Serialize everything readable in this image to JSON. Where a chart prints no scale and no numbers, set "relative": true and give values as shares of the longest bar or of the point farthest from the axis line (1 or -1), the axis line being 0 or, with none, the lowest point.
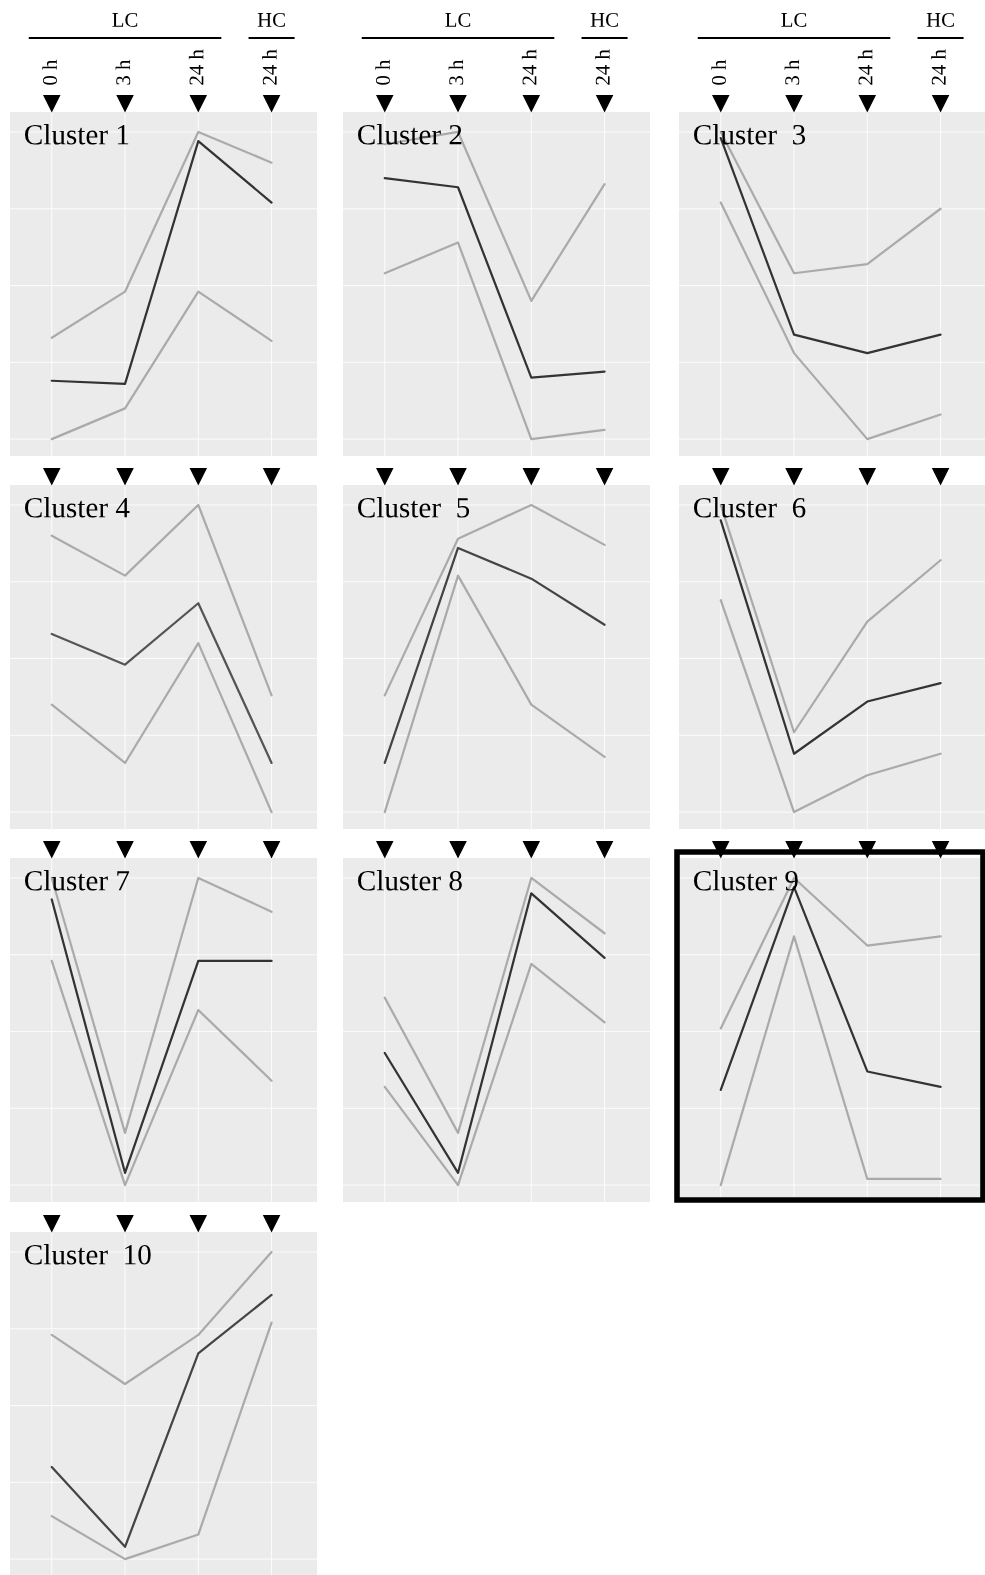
{
  "chart_data": [
    {
      "type": "line",
      "title": "Cluster 1",
      "relative": true,
      "grid": true,
      "categories": [
        "0 h",
        "3 h",
        "24 h",
        "24 h"
      ],
      "annotations": [
        "LC",
        "HC"
      ],
      "series": [
        {
          "color": "#aaaaaa",
          "values": [
            0.33,
            0.48,
            1,
            0.9
          ]
        },
        {
          "color": "#aaaaaa",
          "values": [
            0,
            0.1,
            0.48,
            0.32
          ]
        },
        {
          "color": "#333333",
          "values": [
            0.19,
            0.18,
            0.97,
            0.77
          ]
        }
      ]
    },
    {
      "type": "line",
      "title": "Cluster 2",
      "relative": true,
      "grid": true,
      "categories": [
        "0 h",
        "3 h",
        "24 h",
        "24 h"
      ],
      "annotations": [
        "LC",
        "HC"
      ],
      "series": [
        {
          "color": "#aaaaaa",
          "values": [
            0.96,
            1,
            0.45,
            0.83
          ]
        },
        {
          "color": "#aaaaaa",
          "values": [
            0.54,
            0.64,
            0,
            0.03
          ]
        },
        {
          "color": "#333333",
          "values": [
            0.85,
            0.82,
            0.2,
            0.22
          ]
        }
      ]
    },
    {
      "type": "line",
      "title": "Cluster  3",
      "relative": true,
      "grid": true,
      "categories": [
        "0 h",
        "3 h",
        "24 h",
        "24 h"
      ],
      "annotations": [
        "LC",
        "HC"
      ],
      "series": [
        {
          "color": "#aaaaaa",
          "values": [
            1,
            0.54,
            0.57,
            0.75
          ]
        },
        {
          "color": "#aaaaaa",
          "values": [
            0.77,
            0.28,
            0,
            0.08
          ]
        },
        {
          "color": "#333333",
          "values": [
            0.98,
            0.34,
            0.28,
            0.34
          ]
        }
      ]
    },
    {
      "type": "line",
      "title": "Cluster 4",
      "relative": true,
      "grid": true,
      "categories": [
        null,
        null,
        null,
        null
      ],
      "series": [
        {
          "color": "#aaaaaa",
          "values": [
            0.9,
            0.77,
            1,
            0.38
          ]
        },
        {
          "color": "#aaaaaa",
          "values": [
            0.35,
            0.16,
            0.55,
            0
          ]
        },
        {
          "color": "#555555",
          "values": [
            0.58,
            0.48,
            0.68,
            0.16
          ]
        }
      ]
    },
    {
      "type": "line",
      "title": "Cluster  5",
      "relative": true,
      "grid": true,
      "categories": [
        null,
        null,
        null,
        null
      ],
      "series": [
        {
          "color": "#aaaaaa",
          "values": [
            0.38,
            0.89,
            1,
            0.87
          ]
        },
        {
          "color": "#aaaaaa",
          "values": [
            0,
            0.77,
            0.35,
            0.18
          ]
        },
        {
          "color": "#444444",
          "values": [
            0.16,
            0.86,
            0.76,
            0.61
          ]
        }
      ]
    },
    {
      "type": "line",
      "title": "Cluster  6",
      "relative": true,
      "grid": true,
      "categories": [
        null,
        null,
        null,
        null
      ],
      "series": [
        {
          "color": "#aaaaaa",
          "values": [
            1,
            0.26,
            0.62,
            0.82
          ]
        },
        {
          "color": "#aaaaaa",
          "values": [
            0.69,
            0,
            0.12,
            0.19
          ]
        },
        {
          "color": "#333333",
          "values": [
            0.95,
            0.19,
            0.36,
            0.42
          ]
        }
      ]
    },
    {
      "type": "line",
      "title": "Cluster 7",
      "relative": true,
      "grid": true,
      "categories": [
        null,
        null,
        null,
        null
      ],
      "series": [
        {
          "color": "#aaaaaa",
          "values": [
            1,
            0.17,
            1,
            0.89
          ]
        },
        {
          "color": "#aaaaaa",
          "values": [
            0.73,
            0,
            0.57,
            0.34
          ]
        },
        {
          "color": "#333333",
          "values": [
            0.93,
            0.04,
            0.73,
            0.73
          ]
        }
      ]
    },
    {
      "type": "line",
      "title": "Cluster 8",
      "relative": true,
      "grid": true,
      "categories": [
        null,
        null,
        null,
        null
      ],
      "series": [
        {
          "color": "#aaaaaa",
          "values": [
            0.61,
            0.17,
            1,
            0.82
          ]
        },
        {
          "color": "#aaaaaa",
          "values": [
            0.32,
            0,
            0.72,
            0.53
          ]
        },
        {
          "color": "#333333",
          "values": [
            0.43,
            0.04,
            0.95,
            0.74
          ]
        }
      ]
    },
    {
      "type": "line",
      "title": "Cluster 9",
      "relative": true,
      "grid": true,
      "categories": [
        null,
        null,
        null,
        null
      ],
      "series": [
        {
          "color": "#aaaaaa",
          "values": [
            0.51,
            1,
            0.78,
            0.81
          ]
        },
        {
          "color": "#aaaaaa",
          "values": [
            0,
            0.81,
            0.02,
            0.02
          ]
        },
        {
          "color": "#333333",
          "values": [
            0.31,
            0.97,
            0.37,
            0.32
          ]
        }
      ]
    },
    {
      "type": "line",
      "title": "Cluster  10",
      "relative": true,
      "grid": true,
      "categories": [
        null,
        null,
        null,
        null
      ],
      "series": [
        {
          "color": "#aaaaaa",
          "values": [
            0.73,
            0.57,
            0.73,
            1
          ]
        },
        {
          "color": "#aaaaaa",
          "values": [
            0.14,
            0,
            0.08,
            0.77
          ]
        },
        {
          "color": "#444444",
          "values": [
            0.3,
            0.04,
            0.67,
            0.86
          ]
        }
      ]
    }
  ]
}
